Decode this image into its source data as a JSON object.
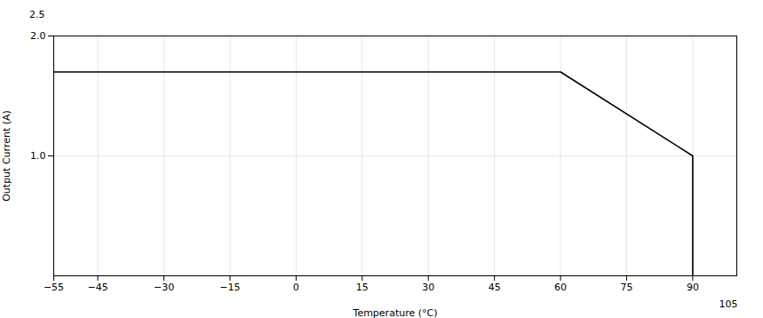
{
  "chart_data": {
    "type": "line",
    "x": [
      -55,
      60,
      90,
      90
    ],
    "values": [
      1.7,
      1.7,
      1.0,
      0.0
    ],
    "xlim": [
      -55,
      100
    ],
    "ylim": [
      0,
      2.0
    ],
    "xticks": [
      -55,
      -45,
      -30,
      -15,
      0,
      15,
      30,
      45,
      60,
      75,
      90
    ],
    "yticks": [
      1,
      2
    ],
    "xlabel": "Temperature (°C)",
    "ylabel": "Output Current (A)",
    "grid": true,
    "annotations": [
      {
        "text": "2.5",
        "x": -55,
        "y": 2.0
      },
      {
        "text": "105",
        "x": 90,
        "y": 0
      }
    ]
  }
}
